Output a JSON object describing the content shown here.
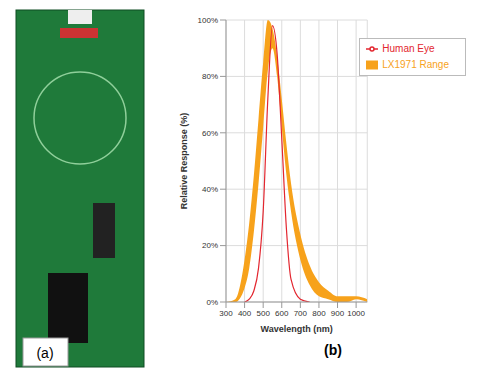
{
  "photo": {
    "label": "(a)"
  },
  "chart_data": {
    "type": "line",
    "title": "(b)",
    "x_label": "Wavelength (nm)",
    "y_label": "Relative Response (%)",
    "x": [
      300,
      350,
      400,
      425,
      450,
      475,
      500,
      525,
      550,
      575,
      600,
      625,
      650,
      700,
      750,
      800,
      850,
      900,
      950,
      1000,
      1060
    ],
    "series": [
      {
        "name": "Human Eye",
        "type": "line",
        "color": "#e3262f",
        "values": [
          null,
          null,
          0,
          1,
          4,
          12,
          32,
          72,
          98,
          88,
          58,
          26,
          8,
          1,
          0,
          null,
          null,
          null,
          null,
          null,
          null
        ]
      },
      {
        "name": "LX1971 Range",
        "type": "area",
        "color": "#f7a21b",
        "values": [
          [
            0,
            0
          ],
          [
            0,
            1
          ],
          [
            5,
            15
          ],
          [
            12,
            28
          ],
          [
            25,
            45
          ],
          [
            42,
            65
          ],
          [
            62,
            85
          ],
          [
            82,
            100
          ],
          [
            90,
            97
          ],
          [
            80,
            87
          ],
          [
            62,
            72
          ],
          [
            45,
            56
          ],
          [
            32,
            42
          ],
          [
            15,
            24
          ],
          [
            6,
            13
          ],
          [
            2,
            7
          ],
          [
            1,
            4
          ],
          [
            0,
            2
          ],
          [
            0,
            2
          ],
          [
            1,
            2
          ],
          [
            0,
            1
          ]
        ]
      }
    ],
    "xlim": [
      300,
      1060
    ],
    "xticks": [
      300,
      400,
      500,
      600,
      700,
      800,
      900,
      1000
    ],
    "ylim": [
      0,
      100
    ],
    "yticks": [
      {
        "value": 0,
        "label": "0%"
      },
      {
        "value": 20,
        "label": "20%"
      },
      {
        "value": 40,
        "label": "40%"
      },
      {
        "value": 60,
        "label": "60%"
      },
      {
        "value": 80,
        "label": "80%"
      },
      {
        "value": 100,
        "label": "100%"
      }
    ],
    "grid": true,
    "legend": "upper right"
  }
}
